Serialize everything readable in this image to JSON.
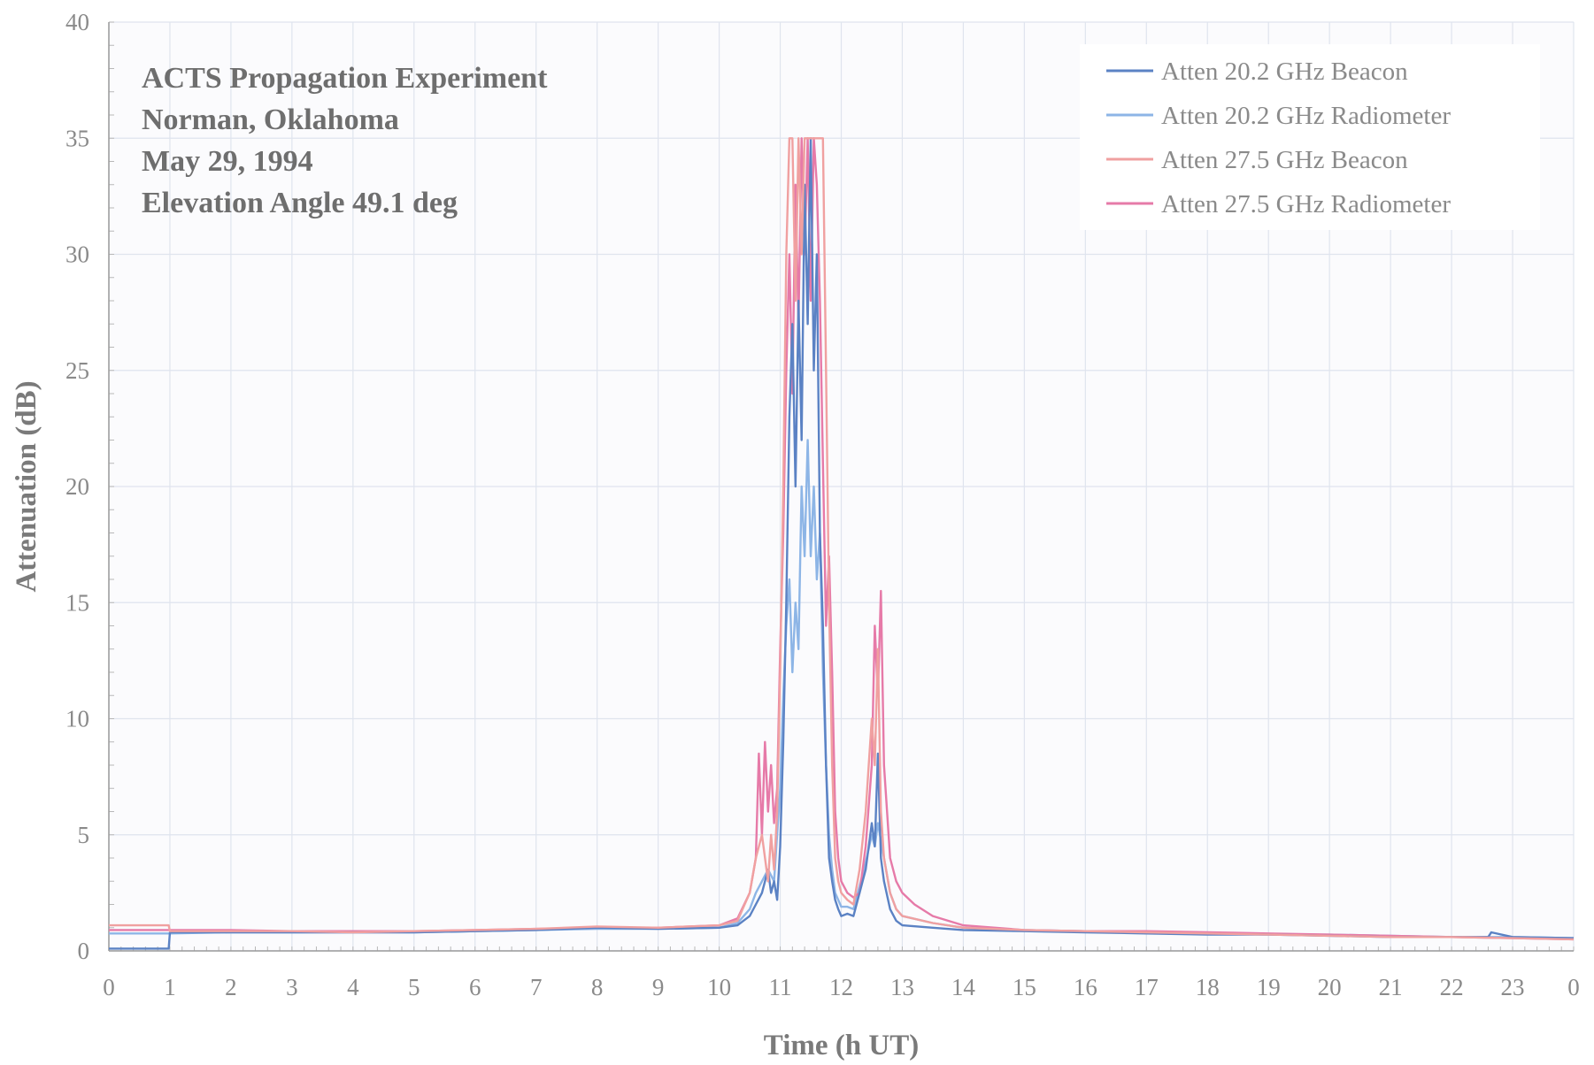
{
  "chart_data": {
    "type": "line",
    "title_lines": [
      "ACTS Propagation Experiment",
      "Norman, Oklahoma",
      "May 29, 1994",
      "Elevation Angle 49.1 deg"
    ],
    "xlabel": "Time (h UT)",
    "ylabel": "Attenuation (dB)",
    "xlim": [
      0,
      24
    ],
    "ylim": [
      0,
      40
    ],
    "x_ticks": [
      0,
      1,
      2,
      3,
      4,
      5,
      6,
      7,
      8,
      9,
      10,
      11,
      12,
      13,
      14,
      15,
      16,
      17,
      18,
      19,
      20,
      21,
      22,
      23,
      24
    ],
    "x_tick_labels": [
      "0",
      "1",
      "2",
      "3",
      "4",
      "5",
      "6",
      "7",
      "8",
      "9",
      "10",
      "11",
      "12",
      "13",
      "14",
      "15",
      "16",
      "17",
      "18",
      "19",
      "20",
      "21",
      "22",
      "23",
      "0"
    ],
    "y_ticks": [
      0,
      5,
      10,
      15,
      20,
      25,
      30,
      35,
      40
    ],
    "y_tick_labels": [
      "0",
      "5",
      "10",
      "15",
      "20",
      "25",
      "30",
      "35",
      "40"
    ],
    "grid": true,
    "legend_position": "top-right",
    "series": [
      {
        "name": "Atten 20.2 GHz Beacon",
        "color": "#5b82c4",
        "x": [
          0,
          0.98,
          1.0,
          2,
          3,
          4,
          5,
          6,
          7,
          8,
          9,
          10,
          10.3,
          10.5,
          10.6,
          10.7,
          10.8,
          10.85,
          10.9,
          10.95,
          11.0,
          11.05,
          11.1,
          11.15,
          11.2,
          11.25,
          11.3,
          11.35,
          11.4,
          11.45,
          11.5,
          11.55,
          11.6,
          11.65,
          11.7,
          11.75,
          11.8,
          11.85,
          11.9,
          11.95,
          12.0,
          12.1,
          12.2,
          12.3,
          12.4,
          12.5,
          12.55,
          12.6,
          12.65,
          12.7,
          12.8,
          12.9,
          13.0,
          13.5,
          14,
          15,
          16,
          17,
          18,
          19,
          20,
          21,
          22,
          22.6,
          22.65,
          23,
          24
        ],
        "y": [
          0.1,
          0.1,
          0.8,
          0.8,
          0.8,
          0.8,
          0.8,
          0.85,
          0.9,
          1.0,
          0.95,
          1.0,
          1.1,
          1.5,
          2.0,
          2.5,
          3.5,
          2.5,
          3.0,
          2.2,
          4.5,
          9.0,
          15.0,
          23.0,
          27.0,
          20.0,
          28.0,
          22.0,
          33.0,
          27.0,
          35.0,
          25.0,
          30.0,
          18.0,
          14.0,
          8.0,
          4.0,
          3.0,
          2.2,
          1.8,
          1.5,
          1.6,
          1.5,
          2.5,
          3.5,
          5.5,
          4.5,
          8.5,
          4.0,
          3.0,
          1.8,
          1.3,
          1.1,
          1.0,
          0.9,
          0.85,
          0.8,
          0.75,
          0.7,
          0.7,
          0.65,
          0.6,
          0.6,
          0.6,
          0.8,
          0.6,
          0.55
        ]
      },
      {
        "name": "Atten 20.2 GHz Radiometer",
        "color": "#8db5e6",
        "x": [
          0,
          1,
          2,
          3,
          4,
          5,
          6,
          7,
          8,
          9,
          10,
          10.3,
          10.5,
          10.6,
          10.7,
          10.8,
          10.9,
          11.0,
          11.05,
          11.1,
          11.15,
          11.2,
          11.25,
          11.3,
          11.35,
          11.4,
          11.45,
          11.5,
          11.55,
          11.6,
          11.65,
          11.7,
          11.75,
          11.8,
          11.85,
          11.9,
          12.0,
          12.1,
          12.2,
          12.3,
          12.4,
          12.5,
          12.55,
          12.6,
          12.7,
          12.8,
          12.9,
          13.0,
          13.5,
          14,
          15,
          16,
          17,
          18,
          19,
          20,
          21,
          22,
          23,
          24
        ],
        "y": [
          0.75,
          0.75,
          0.8,
          0.8,
          0.8,
          0.8,
          0.85,
          0.9,
          0.95,
          0.95,
          1.0,
          1.2,
          1.8,
          2.5,
          3.0,
          3.5,
          3.0,
          7.0,
          11.0,
          14.0,
          16.0,
          12.0,
          15.0,
          13.0,
          20.0,
          17.0,
          22.0,
          17.0,
          20.0,
          16.0,
          18.0,
          12.0,
          8.0,
          5.0,
          3.5,
          2.5,
          1.9,
          1.9,
          1.8,
          2.8,
          3.8,
          5.0,
          4.5,
          5.5,
          4.0,
          2.5,
          1.8,
          1.5,
          1.2,
          1.0,
          0.9,
          0.85,
          0.8,
          0.75,
          0.7,
          0.7,
          0.65,
          0.6,
          0.6,
          0.55
        ]
      },
      {
        "name": "Atten 27.5 GHz Beacon",
        "color": "#f0a0a0",
        "x": [
          0,
          0.98,
          1.0,
          2,
          3,
          4,
          5,
          6,
          7,
          8,
          9,
          10,
          10.3,
          10.5,
          10.6,
          10.7,
          10.8,
          10.85,
          10.9,
          10.95,
          11.0,
          11.05,
          11.1,
          11.15,
          11.2,
          11.25,
          11.3,
          11.35,
          11.4,
          11.45,
          11.5,
          11.55,
          11.6,
          11.65,
          11.7,
          11.75,
          11.8,
          11.85,
          11.9,
          11.95,
          12.0,
          12.1,
          12.2,
          12.3,
          12.4,
          12.5,
          12.55,
          12.6,
          12.65,
          12.7,
          12.8,
          12.9,
          13.0,
          13.5,
          14,
          15,
          16,
          17,
          18,
          19,
          20,
          21,
          22,
          23,
          24
        ],
        "y": [
          1.1,
          1.1,
          0.85,
          0.85,
          0.85,
          0.8,
          0.85,
          0.9,
          0.95,
          1.05,
          1.0,
          1.1,
          1.3,
          2.5,
          4.0,
          5.0,
          3.0,
          5.0,
          3.5,
          6.0,
          12.0,
          20.0,
          30.0,
          35.0,
          35.0,
          28.0,
          35.0,
          30.0,
          35.0,
          35.0,
          35.0,
          35.0,
          35.0,
          35.0,
          35.0,
          25.0,
          15.0,
          8.0,
          4.0,
          3.0,
          2.5,
          2.2,
          2.0,
          3.5,
          6.0,
          10.0,
          8.0,
          13.0,
          6.0,
          4.0,
          2.5,
          1.8,
          1.5,
          1.2,
          1.0,
          0.9,
          0.85,
          0.8,
          0.75,
          0.7,
          0.65,
          0.6,
          0.6,
          0.55,
          0.5
        ]
      },
      {
        "name": "Atten 27.5 GHz Radiometer",
        "color": "#e67aa8",
        "x": [
          0,
          1,
          2,
          3,
          4,
          5,
          6,
          7,
          8,
          9,
          10,
          10.3,
          10.5,
          10.6,
          10.65,
          10.7,
          10.75,
          10.8,
          10.85,
          10.9,
          10.95,
          11.0,
          11.05,
          11.1,
          11.15,
          11.2,
          11.25,
          11.3,
          11.35,
          11.4,
          11.45,
          11.5,
          11.55,
          11.6,
          11.65,
          11.7,
          11.75,
          11.8,
          11.85,
          11.9,
          11.95,
          12.0,
          12.1,
          12.2,
          12.3,
          12.4,
          12.5,
          12.55,
          12.6,
          12.65,
          12.7,
          12.8,
          12.9,
          13.0,
          13.2,
          13.5,
          14,
          15,
          16,
          17,
          18,
          19,
          20,
          21,
          22,
          23,
          24
        ],
        "y": [
          0.9,
          0.9,
          0.9,
          0.85,
          0.85,
          0.85,
          0.9,
          0.95,
          1.0,
          1.0,
          1.1,
          1.4,
          2.5,
          4.0,
          8.5,
          5.0,
          9.0,
          6.0,
          8.0,
          5.5,
          7.0,
          13.0,
          18.0,
          25.0,
          30.0,
          24.0,
          33.0,
          27.0,
          35.0,
          30.0,
          35.0,
          28.0,
          35.0,
          33.0,
          28.0,
          21.0,
          14.0,
          17.0,
          12.0,
          6.0,
          4.0,
          3.0,
          2.5,
          2.3,
          2.5,
          4.5,
          8.0,
          14.0,
          11.0,
          15.5,
          8.0,
          4.0,
          3.0,
          2.5,
          2.0,
          1.5,
          1.1,
          0.9,
          0.85,
          0.85,
          0.8,
          0.75,
          0.7,
          0.65,
          0.6,
          0.55,
          0.5
        ]
      }
    ]
  }
}
